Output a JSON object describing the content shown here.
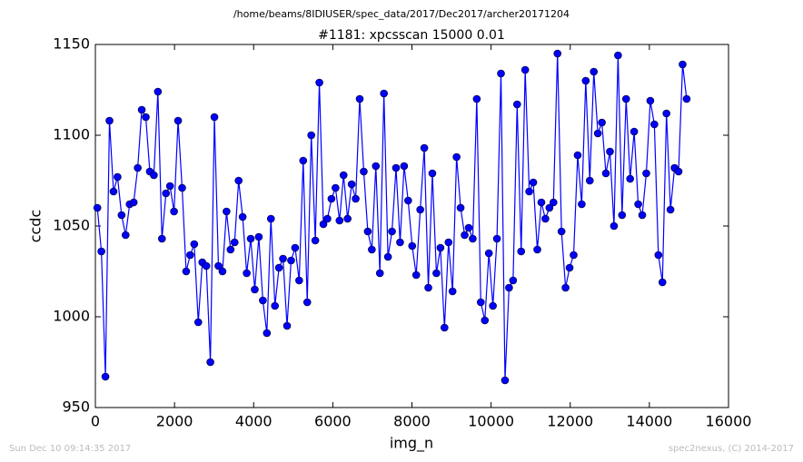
{
  "chart_data": {
    "type": "line",
    "suptitle": "/home/beams/8IDIUSER/spec_data/2017/Dec2017/archer20171204",
    "title": "#1181: xpcsscan 15000 0.01",
    "xlabel": "img_n",
    "ylabel": "ccdc",
    "footer_left": "Sun Dec 10 09:14:35 2017",
    "footer_right": "spec2nexus, (C) 2014-2017",
    "x": [
      50,
      152,
      254,
      356,
      458,
      560,
      662,
      764,
      866,
      968,
      1070,
      1172,
      1274,
      1376,
      1478,
      1580,
      1682,
      1784,
      1886,
      1988,
      2090,
      2192,
      2294,
      2396,
      2498,
      2600,
      2702,
      2804,
      2906,
      3008,
      3110,
      3212,
      3314,
      3416,
      3518,
      3620,
      3722,
      3824,
      3926,
      4028,
      4130,
      4232,
      4334,
      4436,
      4538,
      4640,
      4742,
      4844,
      4946,
      5048,
      5150,
      5252,
      5354,
      5456,
      5558,
      5660,
      5762,
      5864,
      5966,
      6068,
      6170,
      6272,
      6374,
      6476,
      6578,
      6680,
      6782,
      6884,
      6986,
      7088,
      7190,
      7292,
      7394,
      7496,
      7598,
      7700,
      7802,
      7904,
      8006,
      8108,
      8210,
      8312,
      8414,
      8516,
      8618,
      8720,
      8822,
      8924,
      9026,
      9128,
      9230,
      9332,
      9434,
      9536,
      9638,
      9740,
      9842,
      9944,
      10046,
      10148,
      10250,
      10352,
      10454,
      10556,
      10658,
      10760,
      10862,
      10964,
      11066,
      11168,
      11270,
      11372,
      11474,
      11576,
      11678,
      11780,
      11882,
      11984,
      12086,
      12188,
      12290,
      12392,
      12494,
      12596,
      12698,
      12800,
      12902,
      13004,
      13106,
      13208,
      13310,
      13412,
      13514,
      13616,
      13718,
      13820,
      13922,
      14024,
      14126,
      14228,
      14330,
      14432,
      14534,
      14636,
      14738,
      14840,
      14942
    ],
    "series": [
      {
        "color": "#0000ff",
        "values": [
          1060,
          1036,
          967,
          1108,
          1069,
          1077,
          1056,
          1045,
          1062,
          1063,
          1082,
          1114,
          1110,
          1080,
          1078,
          1124,
          1043,
          1068,
          1072,
          1058,
          1108,
          1071,
          1025,
          1034,
          1040,
          997,
          1030,
          1028,
          975,
          1110,
          1028,
          1025,
          1058,
          1037,
          1041,
          1075,
          1055,
          1024,
          1043,
          1015,
          1044,
          1009,
          991,
          1054,
          1006,
          1027,
          1032,
          995,
          1031,
          1038,
          1020,
          1086,
          1008,
          1100,
          1042,
          1129,
          1051,
          1054,
          1065,
          1071,
          1053,
          1078,
          1054,
          1073,
          1065,
          1120,
          1080,
          1047,
          1037,
          1083,
          1024,
          1123,
          1033,
          1047,
          1082,
          1041,
          1083,
          1064,
          1039,
          1023,
          1059,
          1093,
          1016,
          1079,
          1024,
          1038,
          994,
          1041,
          1014,
          1088,
          1060,
          1045,
          1049,
          1043,
          1120,
          1008,
          998,
          1035,
          1006,
          1043,
          1134,
          965,
          1016,
          1020,
          1117,
          1036,
          1136,
          1069,
          1074,
          1037,
          1063,
          1054,
          1060,
          1063,
          1145,
          1047,
          1016,
          1027,
          1034,
          1089,
          1062,
          1130,
          1075,
          1135,
          1101,
          1107,
          1079,
          1091,
          1050,
          1144,
          1056,
          1120,
          1076,
          1102,
          1062,
          1056,
          1079,
          1119,
          1106,
          1034,
          1019,
          1112,
          1059,
          1082,
          1080,
          1139,
          1120
        ]
      }
    ],
    "xlim": [
      0,
      16000
    ],
    "xticks": [
      0,
      2000,
      4000,
      6000,
      8000,
      10000,
      12000,
      14000,
      16000
    ],
    "ylim": [
      950,
      1150
    ],
    "yticks": [
      950,
      1000,
      1050,
      1100,
      1150
    ]
  }
}
